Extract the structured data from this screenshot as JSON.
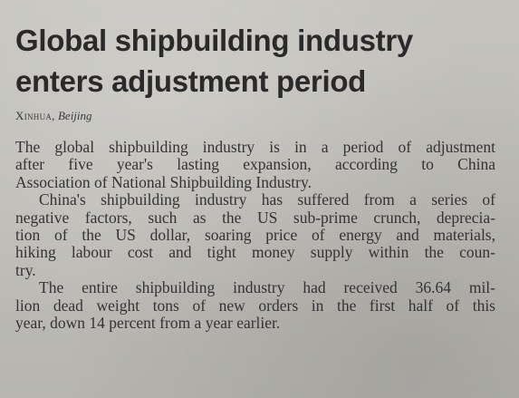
{
  "article": {
    "headline_line1": "Global shipbuilding industry",
    "headline_line2": "enters adjustment period",
    "byline_agency": "Xinhua,",
    "byline_city": "Beijing",
    "lines": [
      "The global shipbuilding industry is in a period of adjustment",
      "after five year's lasting expansion, according to China",
      "Association of National Shipbuilding Industry.",
      "China's shipbuilding industry has suffered from a series of",
      "negative factors, such as the US sub-prime crunch, deprecia-",
      "tion of the US dollar, soaring price of energy and materials,",
      "hiking labour cost and tight money supply within the coun-",
      "try.",
      "The entire shipbuilding industry had received 36.64 mil-",
      "lion dead weight tons of new orders in the first half of this",
      "year, down 14 percent from a year earlier."
    ]
  }
}
